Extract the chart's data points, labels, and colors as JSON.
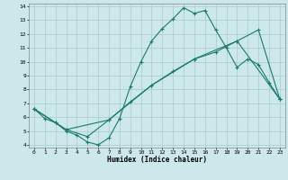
{
  "title": "",
  "xlabel": "Humidex (Indice chaleur)",
  "bg_color": "#cde8ea",
  "line_color": "#1a7a6e",
  "grid_color": "#aecfcf",
  "xlim": [
    -0.5,
    23.5
  ],
  "ylim": [
    3.8,
    14.2
  ],
  "xticks": [
    0,
    1,
    2,
    3,
    4,
    5,
    6,
    7,
    8,
    9,
    10,
    11,
    12,
    13,
    14,
    15,
    16,
    17,
    18,
    19,
    20,
    21,
    22,
    23
  ],
  "yticks": [
    4,
    5,
    6,
    7,
    8,
    9,
    10,
    11,
    12,
    13,
    14
  ],
  "line1_x": [
    0,
    1,
    2,
    3,
    4,
    5,
    6,
    7,
    8,
    9,
    10,
    11,
    12,
    13,
    14,
    15,
    16,
    17,
    18,
    19,
    20,
    21,
    22,
    23
  ],
  "line1_y": [
    6.6,
    5.9,
    5.6,
    5.0,
    4.7,
    4.2,
    4.0,
    4.5,
    5.9,
    8.2,
    10.0,
    11.5,
    12.4,
    13.1,
    13.9,
    13.5,
    13.7,
    12.3,
    11.0,
    9.6,
    10.2,
    9.8,
    8.5,
    7.3
  ],
  "line2_x": [
    0,
    2,
    3,
    5,
    7,
    9,
    11,
    13,
    15,
    17,
    19,
    21,
    23
  ],
  "line2_y": [
    6.6,
    5.6,
    5.1,
    4.6,
    5.8,
    7.1,
    8.3,
    9.3,
    10.2,
    10.7,
    11.5,
    12.3,
    7.3
  ],
  "line3_x": [
    0,
    3,
    7,
    11,
    15,
    19,
    23
  ],
  "line3_y": [
    6.6,
    5.1,
    5.8,
    8.3,
    10.2,
    11.5,
    7.3
  ]
}
